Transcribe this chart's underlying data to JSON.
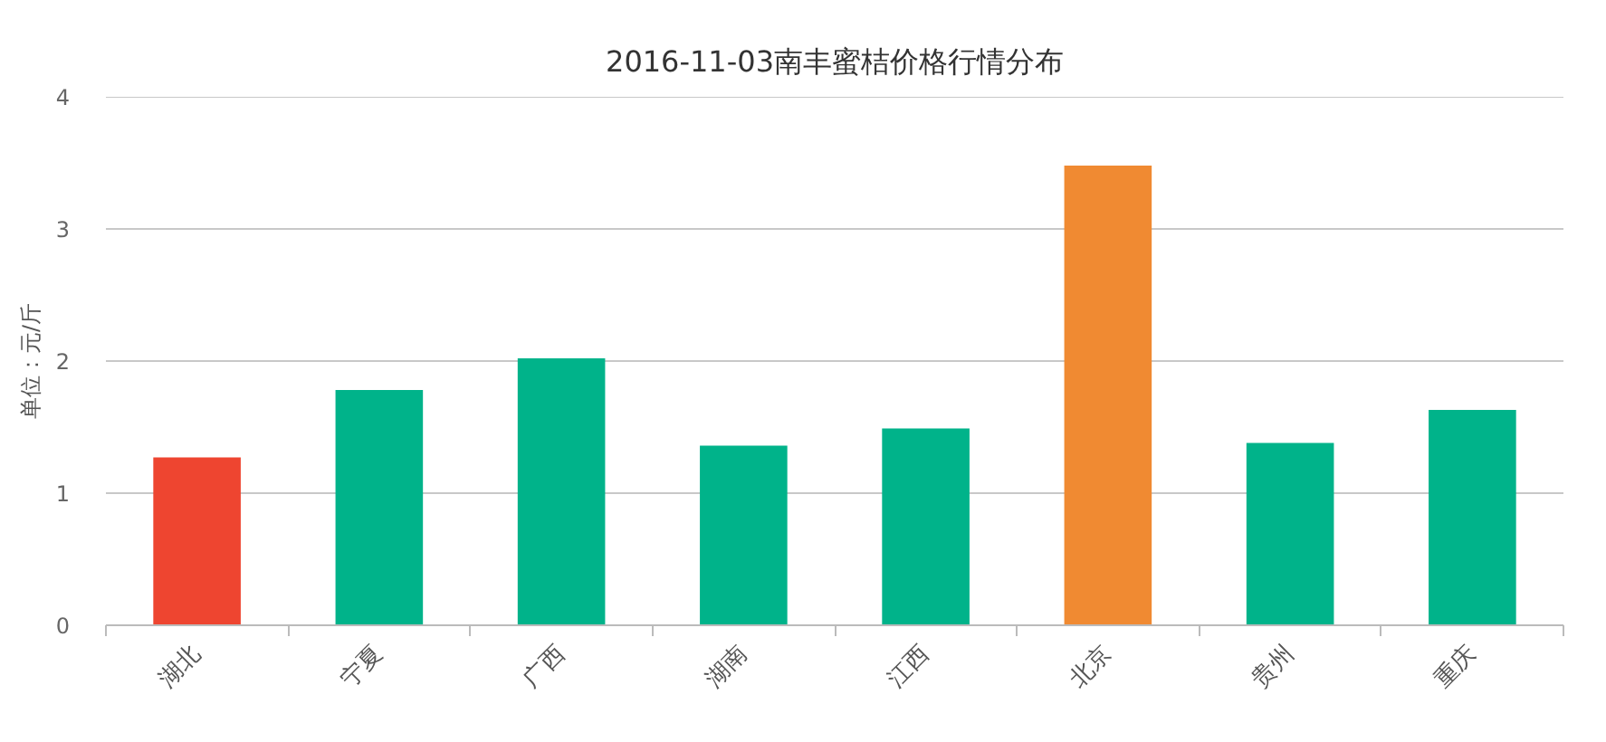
{
  "chart_data": {
    "type": "bar",
    "title": "2016-11-03南丰蜜桔价格行情分布",
    "ylabel": "单位：元/斤",
    "categories": [
      "湖北",
      "宁夏",
      "广西",
      "湖南",
      "江西",
      "北京",
      "贵州",
      "重庆"
    ],
    "values": [
      1.27,
      1.78,
      2.02,
      1.36,
      1.49,
      3.48,
      1.38,
      1.63
    ],
    "colors": [
      "#ee4530",
      "#00b38a",
      "#00b38a",
      "#00b38a",
      "#00b38a",
      "#f08a32",
      "#00b38a",
      "#00b38a"
    ],
    "ylim": [
      0,
      4
    ],
    "yticks": [
      0,
      1,
      2,
      3,
      4
    ],
    "grid": "y"
  }
}
